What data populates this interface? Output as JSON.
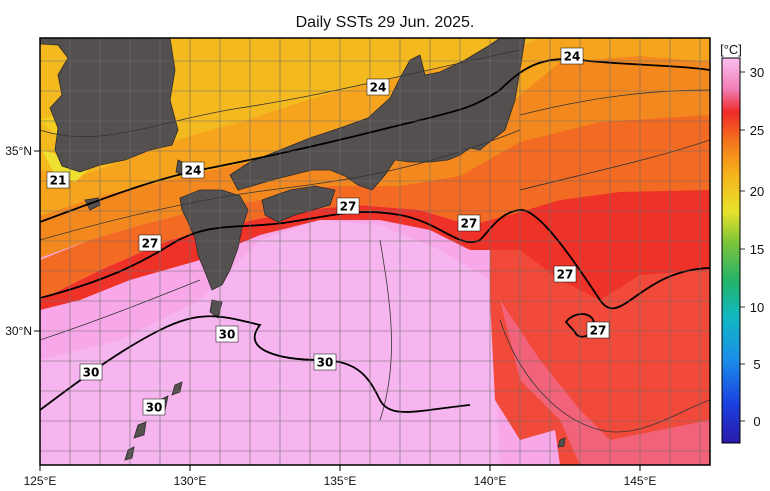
{
  "title": "Daily SSTs 29 Jun. 2025.",
  "colorbar": {
    "unit_label": "[°C]",
    "ticks": [
      "0",
      "5",
      "10",
      "15",
      "20",
      "25",
      "30"
    ]
  },
  "axes": {
    "x_ticks": [
      "125°E",
      "130°E",
      "135°E",
      "140°E",
      "145°E"
    ],
    "y_ticks": [
      "35°N",
      "30°N"
    ]
  },
  "isotherm_labels": [
    "21",
    "24",
    "24",
    "24",
    "27",
    "27",
    "27",
    "27",
    "27",
    "30",
    "30",
    "30",
    "30"
  ],
  "colors": {
    "land": "#545050",
    "warm_pink": "#f7a6e8",
    "red": "#f0322d",
    "orange": "#f7961c",
    "yellow": "#f3d51c"
  }
}
